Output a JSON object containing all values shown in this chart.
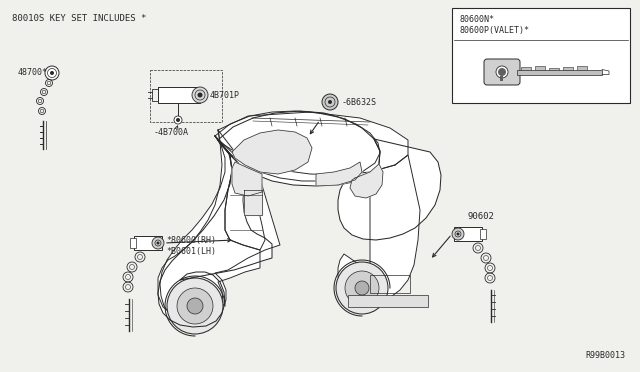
{
  "bg_color": "#f0f0ec",
  "line_color": "#2a2a2a",
  "title_text": "80010S KEY SET INCLUDES *",
  "label_48700": "48700*",
  "label_48701P": "4B701P",
  "label_48700A": "-4B700A",
  "label_68632S": "-6B632S",
  "label_80600RH": "*80600(RH)",
  "label_80601LH": "*B0601(LH)",
  "label_90602": "90602",
  "label_80600N": "80600N*",
  "label_80600P": "80600P(VALET)*",
  "label_R99B0013": "R99B0013",
  "car_fill": "#ffffff",
  "window_fill": "#e8e8e8",
  "wheel_fill": "#d8d8d8",
  "box_fill": "#ffffff"
}
